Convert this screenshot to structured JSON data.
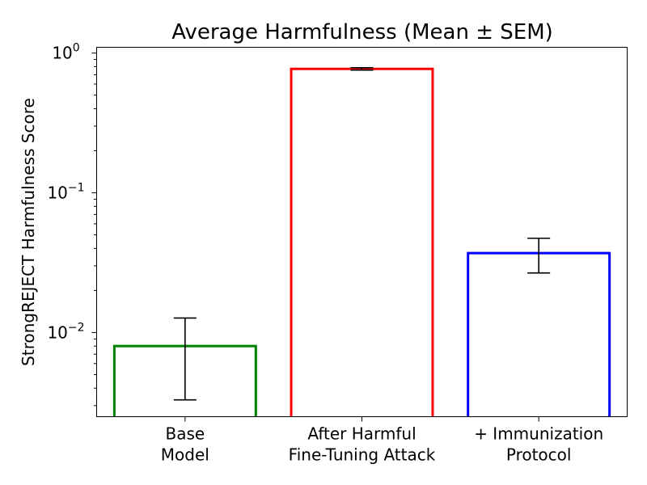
{
  "chart_data": {
    "type": "bar",
    "title": "Average Harmfulness (Mean ± SEM)",
    "xlabel": "",
    "ylabel": "StrongREJECT Harmfulness Score",
    "yscale": "log",
    "ylim": [
      0.0025,
      1.1
    ],
    "grid": false,
    "categories": [
      [
        "Base",
        "Model"
      ],
      [
        "After Harmful",
        "Fine-Tuning Attack"
      ],
      [
        "+ Immunization",
        "Protocol"
      ]
    ],
    "values": [
      0.008,
      0.77,
      0.037
    ],
    "sem": [
      0.0047,
      0.015,
      0.0103
    ],
    "colors": [
      "#008000",
      "#ff0000",
      "#0000ff"
    ],
    "yticks": [
      {
        "value": 0.01,
        "base": "10",
        "exp": "−2"
      },
      {
        "value": 0.1,
        "base": "10",
        "exp": "−1"
      },
      {
        "value": 1,
        "base": "10",
        "exp": "0"
      }
    ]
  }
}
